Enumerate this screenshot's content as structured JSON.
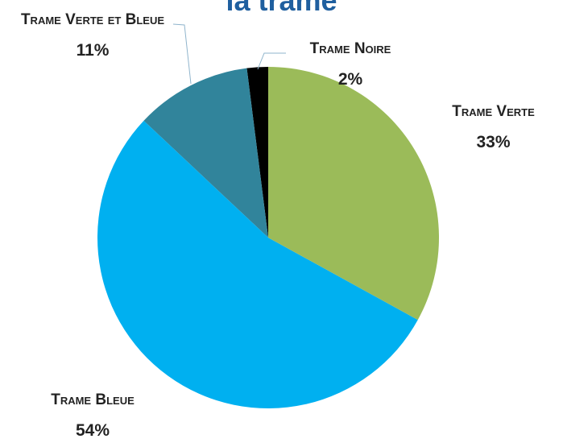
{
  "chart_data": {
    "type": "pie",
    "title": "la trame",
    "categories": [
      "Trame Verte",
      "Trame Bleue",
      "Trame Verte et Bleue",
      "Trame Noire"
    ],
    "values": [
      33,
      54,
      11,
      2
    ],
    "value_labels": [
      "33%",
      "54%",
      "11%",
      "2%"
    ],
    "colors": [
      "#9bbb59",
      "#00b0f0",
      "#31849b",
      "#000000"
    ]
  }
}
